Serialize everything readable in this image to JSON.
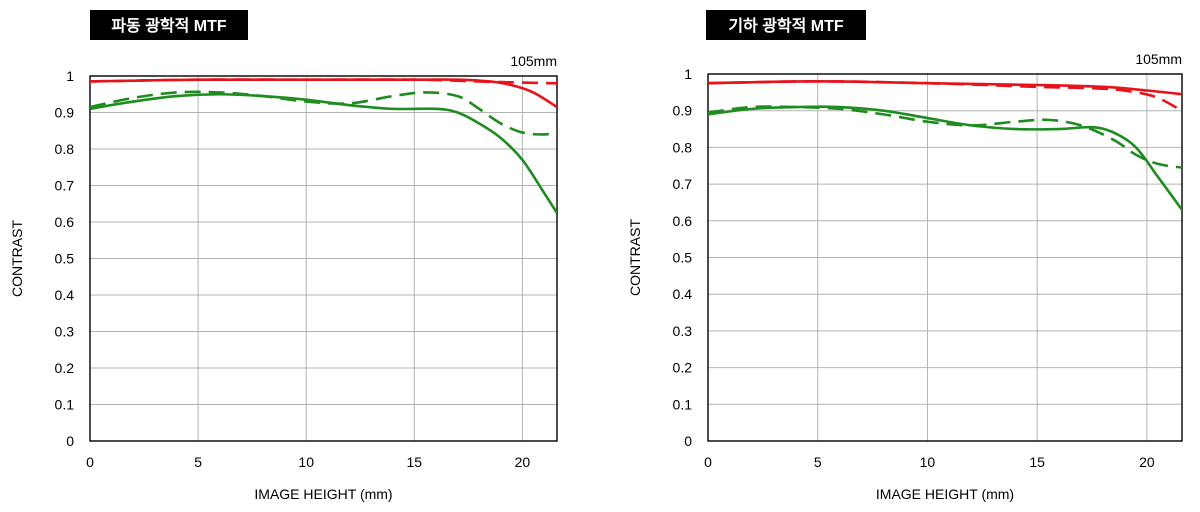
{
  "colors": {
    "red": "#e8131a",
    "green": "#1e8c1e",
    "grid": "#b4b4b4",
    "frame": "#000000",
    "title_bg": "#000000",
    "title_fg": "#ffffff"
  },
  "chart_data": [
    {
      "type": "line",
      "title": "파동 광학적 MTF",
      "focal_length": "105mm",
      "xlabel": "IMAGE HEIGHT (mm)",
      "ylabel": "CONTRAST",
      "xlim": [
        0,
        21.6
      ],
      "ylim": [
        0,
        1
      ],
      "xticks": [
        0,
        5,
        10,
        15,
        20
      ],
      "yticks": [
        0,
        0.1,
        0.2,
        0.3,
        0.4,
        0.5,
        0.6,
        0.7,
        0.8,
        0.9,
        1
      ],
      "ytick_labels": [
        "0",
        "0.1",
        "0.2",
        "0.3",
        "0.4",
        "0.5",
        "0.6",
        "0.7",
        "0.8",
        "0.9",
        "1"
      ],
      "grid": true,
      "series": [
        {
          "color": "red",
          "style": "solid",
          "x": [
            0,
            5,
            10,
            15,
            17,
            18.5,
            19.5,
            20.5,
            21.6
          ],
          "y": [
            0.985,
            0.99,
            0.99,
            0.99,
            0.99,
            0.985,
            0.975,
            0.955,
            0.915
          ]
        },
        {
          "color": "red",
          "style": "dashed",
          "x": [
            0,
            5,
            10,
            15,
            18,
            20,
            21.6
          ],
          "y": [
            0.985,
            0.99,
            0.99,
            0.99,
            0.985,
            0.982,
            0.98
          ]
        },
        {
          "color": "green",
          "style": "solid",
          "x": [
            0,
            2,
            4,
            6,
            8,
            10,
            12,
            14,
            16,
            17,
            18,
            19,
            20,
            21,
            21.6
          ],
          "y": [
            0.91,
            0.93,
            0.945,
            0.95,
            0.945,
            0.935,
            0.92,
            0.91,
            0.91,
            0.9,
            0.87,
            0.83,
            0.77,
            0.68,
            0.625
          ]
        },
        {
          "color": "green",
          "style": "dashed",
          "x": [
            0,
            2,
            4,
            6,
            8,
            10,
            12,
            14,
            15.5,
            17,
            18,
            19,
            20,
            21,
            21.6
          ],
          "y": [
            0.915,
            0.94,
            0.955,
            0.955,
            0.945,
            0.93,
            0.925,
            0.945,
            0.955,
            0.945,
            0.91,
            0.87,
            0.845,
            0.84,
            0.845
          ]
        }
      ]
    },
    {
      "type": "line",
      "title": "기하 광학적 MTF",
      "focal_length": "105mm",
      "xlabel": "IMAGE HEIGHT (mm)",
      "ylabel": "CONTRAST",
      "xlim": [
        0,
        21.6
      ],
      "ylim": [
        0,
        1
      ],
      "xticks": [
        0,
        5,
        10,
        15,
        20
      ],
      "yticks": [
        0,
        0.1,
        0.2,
        0.3,
        0.4,
        0.5,
        0.6,
        0.7,
        0.8,
        0.9,
        1
      ],
      "ytick_labels": [
        "0",
        "0.1",
        "0.2",
        "0.3",
        "0.4",
        "0.5",
        "0.6",
        "0.7",
        "0.8",
        "0.9",
        "1"
      ],
      "grid": true,
      "series": [
        {
          "color": "red",
          "style": "solid",
          "x": [
            0,
            5,
            10,
            15,
            18,
            20,
            21.6
          ],
          "y": [
            0.975,
            0.98,
            0.975,
            0.97,
            0.965,
            0.955,
            0.945
          ]
        },
        {
          "color": "red",
          "style": "dashed",
          "x": [
            0,
            5,
            10,
            15,
            18,
            19.5,
            20.5,
            21.6
          ],
          "y": [
            0.975,
            0.98,
            0.975,
            0.965,
            0.96,
            0.95,
            0.935,
            0.9
          ]
        },
        {
          "color": "green",
          "style": "solid",
          "x": [
            0,
            2,
            4,
            6,
            8,
            10,
            12,
            14,
            16,
            17.5,
            18.5,
            19.5,
            20.5,
            21.6
          ],
          "y": [
            0.89,
            0.905,
            0.91,
            0.91,
            0.9,
            0.88,
            0.86,
            0.85,
            0.85,
            0.855,
            0.84,
            0.8,
            0.72,
            0.63
          ]
        },
        {
          "color": "green",
          "style": "dashed",
          "x": [
            0,
            2,
            4,
            6,
            8,
            10,
            12,
            14,
            15.5,
            17,
            18.5,
            19.5,
            20.5,
            21.6
          ],
          "y": [
            0.895,
            0.91,
            0.91,
            0.905,
            0.89,
            0.87,
            0.86,
            0.87,
            0.875,
            0.86,
            0.82,
            0.78,
            0.755,
            0.745
          ]
        }
      ]
    }
  ]
}
